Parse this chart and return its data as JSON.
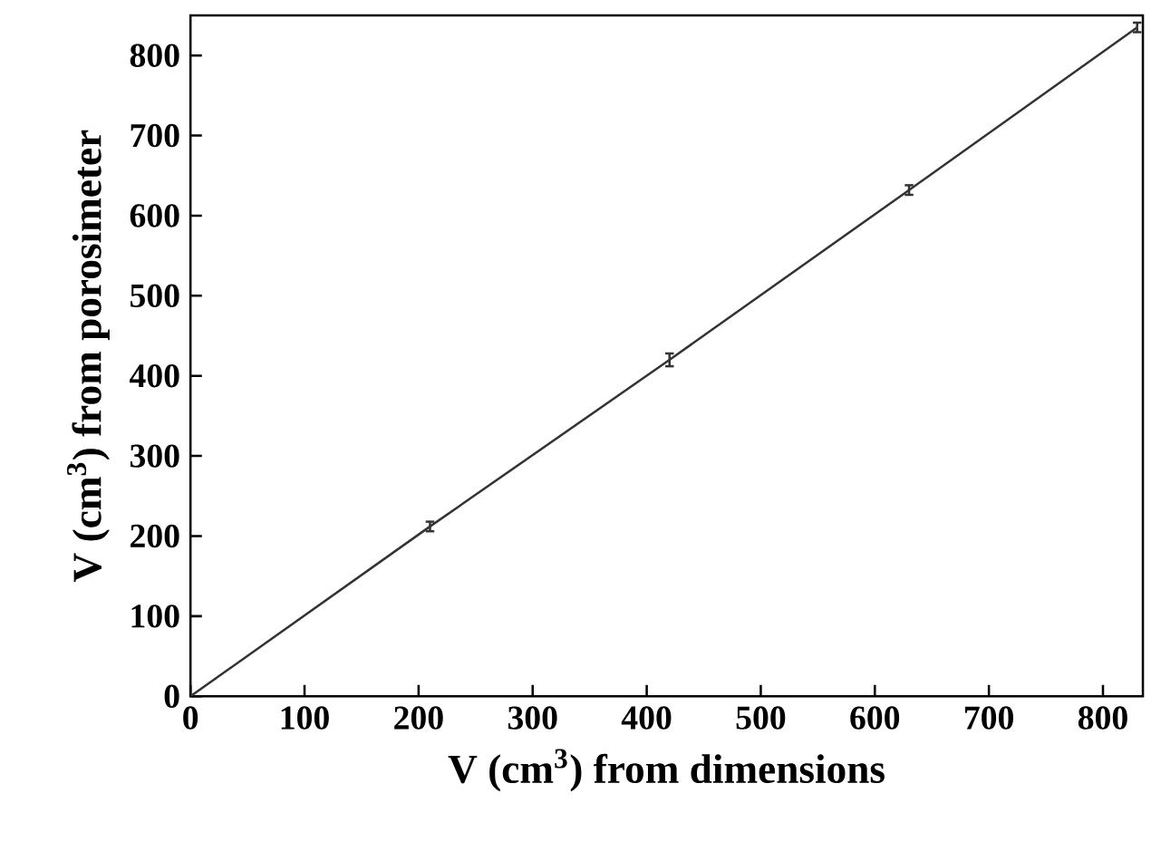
{
  "chart_data": {
    "type": "line",
    "xlabel": "V (cm$^{3}$) from dimensions",
    "ylabel": "V (cm$^{3}$) from porosimeter",
    "x": [
      0,
      210,
      420,
      630,
      830
    ],
    "values": [
      0,
      212,
      420,
      632,
      835
    ],
    "errors": [
      null,
      6,
      8,
      6,
      6
    ],
    "color": "#333333",
    "xlim": [
      0,
      835
    ],
    "ylim": [
      0,
      850
    ],
    "xticks": [
      0,
      100,
      200,
      300,
      400,
      500,
      600,
      700,
      800
    ],
    "yticks": [
      0,
      100,
      200,
      300,
      400,
      500,
      600,
      700,
      800
    ],
    "grid": false,
    "marker": "none",
    "line_style": "solid"
  }
}
